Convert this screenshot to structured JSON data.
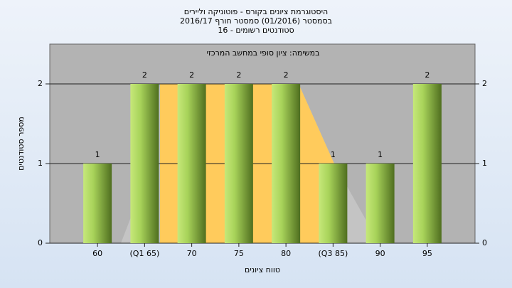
{
  "chart_data": {
    "type": "bar",
    "title": "היסטוגרמת ציונים בקורס - פוטוניקה וליירים",
    "subtitle": "בסמסטר  (01/2016)  סמסטר חורף 2016/17",
    "subtitle2": "סטודנטים רשומים - 16",
    "annotation": "במשימה: ציון סופי במחשב המרכזי",
    "x_label": "טווח ציונים",
    "y_label": "מספר סטודנטים",
    "categories": [
      "60",
      "(Q1 65)",
      "70",
      "75",
      "80",
      "(Q3 85)",
      "90",
      "95"
    ],
    "values": [
      1,
      2,
      2,
      2,
      2,
      1,
      1,
      2
    ],
    "color": "#9acd4a",
    "ylim": [
      0,
      2.5
    ],
    "yticks": [
      0,
      1,
      2
    ],
    "grid": true
  }
}
